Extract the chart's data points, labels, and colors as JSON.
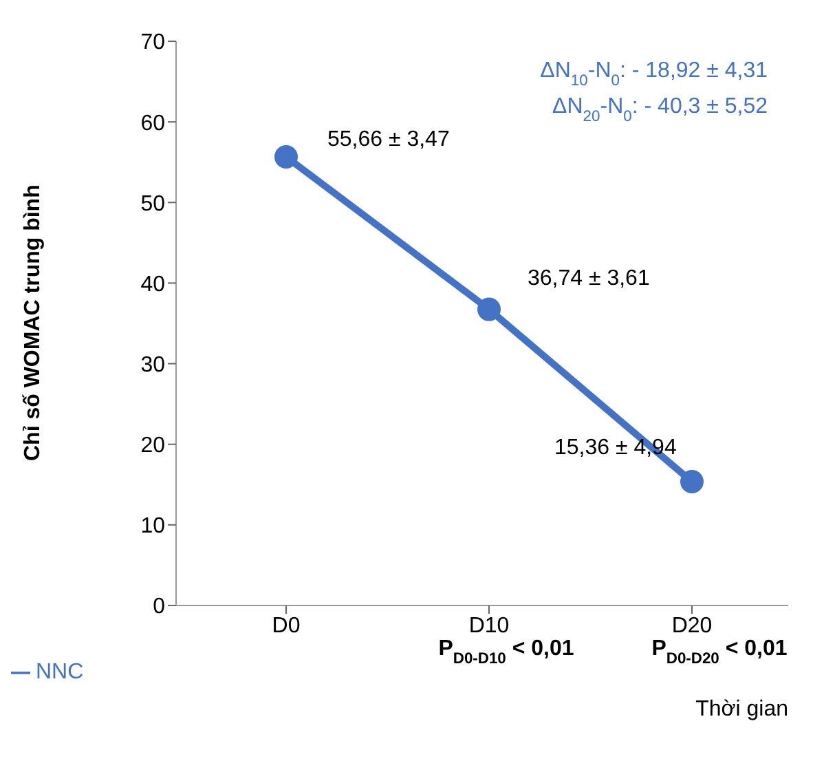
{
  "chart_data": {
    "type": "line",
    "xlabel": "Thời gian",
    "ylabel": "Chỉ số WOMAC trung bình",
    "categories": [
      "D0",
      "D10",
      "D20"
    ],
    "series": [
      {
        "name": "NNC",
        "color": "#4472c4",
        "values": [
          55.66,
          36.74,
          15.36
        ]
      }
    ],
    "ylim": [
      0,
      70
    ],
    "yticks": [
      0,
      10,
      20,
      30,
      40,
      50,
      60,
      70
    ],
    "marker": "circle",
    "line_style": "solid",
    "legend": "bottom left",
    "annotations": [
      {
        "text": "55,66 ± 3,47",
        "x": "D0",
        "y": 55.66
      },
      {
        "text": "36,74 ± 3,61",
        "x": "D10",
        "y": 36.74
      },
      {
        "text": "15,36 ± 4,94",
        "x": "D20",
        "y": 15.36
      },
      "ΔN$_{10}$-N$_{0}$: - 18,92 ± 4,31",
      "ΔN$_{20}$-N$_{0}$: - 40,3 ± 5,52",
      "P$_{D0-D10}$ < 0,01",
      "P$_{D0-D20}$ < 0,01"
    ]
  }
}
